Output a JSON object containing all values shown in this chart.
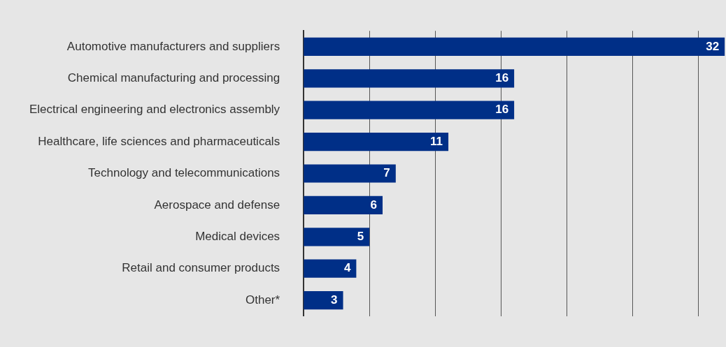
{
  "chart_data": {
    "type": "bar",
    "orientation": "horizontal",
    "categories": [
      "Automotive manufacturers and suppliers",
      "Chemical manufacturing and processing",
      "Electrical engineering and electronics assembly",
      "Healthcare, life sciences and pharmaceuticals",
      "Technology and telecommunications",
      "Aerospace and defense",
      "Medical devices",
      "Retail and consumer products",
      "Other*"
    ],
    "values": [
      32,
      16,
      16,
      11,
      7,
      6,
      5,
      4,
      3
    ],
    "color": "#002f87",
    "xlim": [
      0,
      32.1
    ],
    "xticks": [
      {
        "value": 5,
        "label": null
      },
      {
        "value": 10,
        "label": null
      },
      {
        "value": 15,
        "label": null
      },
      {
        "value": 20,
        "label": null
      },
      {
        "value": 25,
        "label": null
      },
      {
        "value": 30,
        "label": null
      }
    ],
    "grid": "x",
    "tick_labels": "y",
    "data_labels": true,
    "legend": false
  }
}
